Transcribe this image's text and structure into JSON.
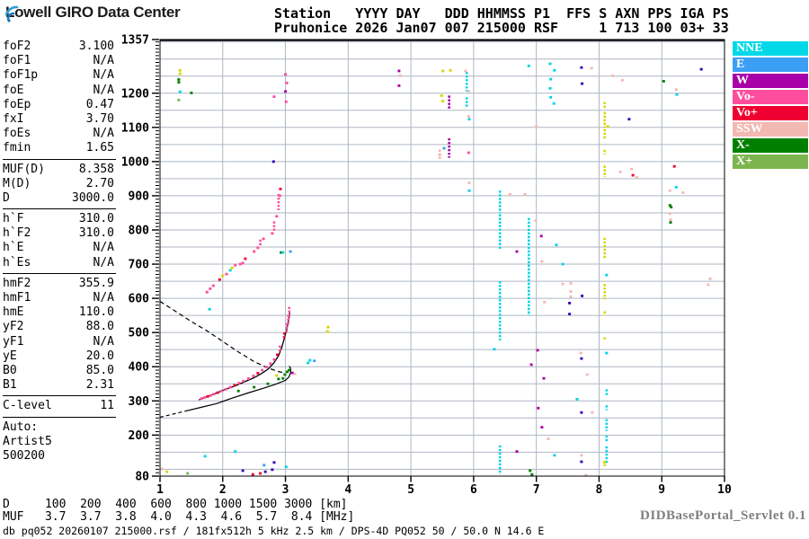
{
  "header": {
    "logo_text": "Lowell GIRO Data Center",
    "station_line1": "Station   YYYY DAY   DDD HHMMSS P1  FFS S AXN PPS IGA PS",
    "station_line2": "Pruhonice 2026 Jan07 007 215000 RSF     1 713 100 03+ 33"
  },
  "left_panel": {
    "groups": [
      {
        "rows": [
          [
            "foF2",
            "3.100"
          ],
          [
            "foF1",
            "N/A"
          ],
          [
            "foF1p",
            "N/A"
          ],
          [
            "foE",
            "N/A"
          ],
          [
            "foEp",
            "0.47"
          ],
          [
            "fxI",
            "3.70"
          ],
          [
            "foEs",
            "N/A"
          ],
          [
            "fmin",
            "1.65"
          ]
        ]
      },
      {
        "rows": [
          [
            "MUF(D)",
            "8.358"
          ],
          [
            "M(D)",
            "2.70"
          ],
          [
            "D",
            "3000.0"
          ]
        ]
      },
      {
        "rows": [
          [
            "h`F",
            "310.0"
          ],
          [
            "h`F2",
            "310.0"
          ],
          [
            "h`E",
            "N/A"
          ],
          [
            "h`Es",
            "N/A"
          ]
        ]
      },
      {
        "rows": [
          [
            "hmF2",
            "355.9"
          ],
          [
            "hmF1",
            "N/A"
          ],
          [
            "hmE",
            "110.0"
          ],
          [
            "yF2",
            "88.0"
          ],
          [
            "yF1",
            "N/A"
          ],
          [
            "yE",
            "20.0"
          ],
          [
            "B0",
            "85.0"
          ],
          [
            "B1",
            "2.31"
          ]
        ]
      },
      {
        "rows": [
          [
            "C-level",
            "11"
          ]
        ]
      },
      {
        "rows": [
          [
            "Auto:",
            ""
          ],
          [
            "Artist5",
            ""
          ],
          [
            "500200",
            ""
          ]
        ]
      }
    ]
  },
  "legend": {
    "items": [
      {
        "label": "NNE",
        "color": "#00D8E8"
      },
      {
        "label": "E",
        "color": "#3B9FF3"
      },
      {
        "label": "W",
        "color": "#A800A8"
      },
      {
        "label": "Vo-",
        "color": "#FF4D9E"
      },
      {
        "label": "Vo+",
        "color": "#F00030"
      },
      {
        "label": "SSW",
        "color": "#F2B8B2"
      },
      {
        "label": "X-",
        "color": "#007F00"
      },
      {
        "label": "X+",
        "color": "#7CB54E"
      }
    ]
  },
  "footer": {
    "d_line": "D     100  200  400  600  800 1000 1500 3000 [km]",
    "muf_line": "MUF   3.7  3.7  3.8  4.0  4.3  4.6  5.7  8.4 [MHz]",
    "status_line": "db pq052 20260107 215000.rsf / 181fx512h 5 kHz 2.5 km / DPS-4D PQ052 50 / 50.0 N 14.6 E",
    "servlet": "DIDBasePortal_Servlet 0.1"
  },
  "chart_data": {
    "type": "scatter",
    "x_ticks": [
      1,
      2,
      3,
      4,
      5,
      6,
      7,
      8,
      9,
      10
    ],
    "y_tick_labels": [
      1357,
      1200,
      1100,
      1000,
      900,
      800,
      700,
      600,
      500,
      400,
      300,
      200,
      80
    ],
    "x_range": [
      1,
      10
    ],
    "y_range": [
      80,
      1357
    ],
    "grid_y_step": 50,
    "grid_on": true,
    "colors": {
      "c": "#00D3E6",
      "b": "#3B9FF3",
      "n": "#3300BB",
      "w": "#A800A8",
      "p": "#FF4D9E",
      "r": "#F00030",
      "s": "#F2B8B2",
      "g": "#007F00",
      "l": "#7CB54E",
      "y": "#D6D600"
    },
    "curves": {
      "profile_trace": [
        [
          1.62,
          303
        ],
        [
          1.75,
          312
        ],
        [
          1.9,
          323
        ],
        [
          2.05,
          334
        ],
        [
          2.2,
          344
        ],
        [
          2.35,
          356
        ],
        [
          2.5,
          368
        ],
        [
          2.62,
          380
        ],
        [
          2.73,
          394
        ],
        [
          2.82,
          412
        ],
        [
          2.89,
          432
        ],
        [
          2.94,
          456
        ],
        [
          2.98,
          482
        ],
        [
          3.02,
          510
        ],
        [
          3.05,
          535
        ],
        [
          3.07,
          558
        ]
      ],
      "transmission_dashed": [
        [
          1.0,
          591
        ],
        [
          1.25,
          562
        ],
        [
          1.5,
          532
        ],
        [
          1.75,
          505
        ],
        [
          2.0,
          474
        ],
        [
          2.25,
          443
        ],
        [
          2.5,
          415
        ],
        [
          2.7,
          398
        ],
        [
          2.88,
          386
        ],
        [
          3.0,
          381
        ]
      ],
      "lower_dashed": [
        [
          1.0,
          252
        ],
        [
          1.2,
          261
        ],
        [
          1.4,
          270
        ]
      ],
      "lower_solid": [
        [
          1.4,
          270
        ],
        [
          1.65,
          281
        ],
        [
          1.9,
          292
        ],
        [
          2.15,
          308
        ],
        [
          2.4,
          323
        ],
        [
          2.65,
          337
        ],
        [
          2.85,
          349
        ],
        [
          3.0,
          360
        ],
        [
          3.06,
          371
        ],
        [
          3.085,
          385
        ],
        [
          3.08,
          396
        ],
        [
          3.06,
          402
        ]
      ]
    },
    "segments": [
      [
        2.6,
        755,
        772,
        "p"
      ],
      [
        2.82,
        795,
        825,
        "p"
      ],
      [
        2.89,
        858,
        905,
        "p"
      ],
      [
        5.89,
        1205,
        1262,
        "c"
      ],
      [
        5.89,
        1156,
        1188,
        "c"
      ],
      [
        5.61,
        1153,
        1193,
        "w"
      ],
      [
        5.61,
        1011,
        1068,
        "w"
      ],
      [
        5.46,
        1005,
        1035,
        "s"
      ],
      [
        6.42,
        849,
        915,
        "c"
      ],
      [
        6.42,
        743,
        846,
        "c"
      ],
      [
        6.42,
        548,
        650,
        "c"
      ],
      [
        6.42,
        477,
        545,
        "c"
      ],
      [
        6.42,
        85,
        170,
        "c"
      ],
      [
        6.88,
        549,
        835,
        "c"
      ],
      [
        8.09,
        1153,
        1174,
        "y"
      ],
      [
        8.09,
        1100,
        1145,
        "y"
      ],
      [
        8.09,
        1066,
        1095,
        "y"
      ],
      [
        8.09,
        1021,
        1034,
        "y"
      ],
      [
        8.09,
        955,
        988,
        "y"
      ],
      [
        8.09,
        716,
        777,
        "y"
      ],
      [
        8.09,
        597,
        642,
        "y"
      ],
      [
        8.09,
        549,
        562,
        "y"
      ],
      [
        8.09,
        480,
        486,
        "y"
      ],
      [
        8.12,
        316,
        334,
        "c"
      ],
      [
        8.12,
        273,
        287,
        "c"
      ],
      [
        8.12,
        212,
        247,
        "c"
      ],
      [
        8.12,
        181,
        199,
        "c"
      ],
      [
        8.12,
        114,
        167,
        "c"
      ],
      [
        8.09,
        109,
        125,
        "y"
      ],
      [
        3.02,
        500,
        528,
        "p"
      ],
      [
        3.045,
        520,
        552,
        "p"
      ],
      [
        3.06,
        542,
        575,
        "p"
      ],
      [
        2.98,
        478,
        500,
        "r"
      ],
      [
        2.91,
        440,
        462,
        "p"
      ]
    ],
    "points": [
      [
        1.32,
        1267,
        "y"
      ],
      [
        1.32,
        1257,
        "y"
      ],
      [
        1.3,
        1240,
        "g"
      ],
      [
        1.3,
        1232,
        "g"
      ],
      [
        1.32,
        1204,
        "c"
      ],
      [
        1.5,
        1201,
        "g"
      ],
      [
        1.3,
        1180,
        "l"
      ],
      [
        3.0,
        1255,
        "p"
      ],
      [
        3.02,
        1230,
        "p"
      ],
      [
        3.0,
        1205,
        "w"
      ],
      [
        3.01,
        1175,
        "p"
      ],
      [
        2.82,
        1190,
        "p"
      ],
      [
        2.81,
        1000,
        "n"
      ],
      [
        1.79,
        568,
        "c"
      ],
      [
        1.75,
        618,
        "p"
      ],
      [
        1.8,
        628,
        "p"
      ],
      [
        1.85,
        637,
        "p"
      ],
      [
        1.95,
        655,
        "r"
      ],
      [
        2.0,
        666,
        "y"
      ],
      [
        2.06,
        671,
        "p"
      ],
      [
        2.12,
        682,
        "c"
      ],
      [
        2.15,
        689,
        "y"
      ],
      [
        2.2,
        697,
        "p"
      ],
      [
        2.28,
        700,
        "p"
      ],
      [
        2.32,
        703,
        "p"
      ],
      [
        2.36,
        716,
        "r"
      ],
      [
        2.5,
        737,
        "p"
      ],
      [
        2.56,
        748,
        "p"
      ],
      [
        2.65,
        774,
        "p"
      ],
      [
        2.79,
        790,
        "p"
      ],
      [
        2.86,
        840,
        "p"
      ],
      [
        2.91,
        900,
        "p"
      ],
      [
        2.92,
        920,
        "r"
      ],
      [
        2.93,
        734,
        "g"
      ],
      [
        2.96,
        734,
        "c"
      ],
      [
        3.08,
        737,
        "b"
      ],
      [
        1.66,
        307,
        "p"
      ],
      [
        1.71,
        310,
        "p"
      ],
      [
        1.76,
        313,
        "r"
      ],
      [
        1.81,
        316,
        "p"
      ],
      [
        1.86,
        320,
        "p"
      ],
      [
        1.92,
        324,
        "r"
      ],
      [
        1.98,
        329,
        "p"
      ],
      [
        2.05,
        334,
        "p"
      ],
      [
        2.12,
        340,
        "p"
      ],
      [
        2.19,
        346,
        "r"
      ],
      [
        2.26,
        352,
        "p"
      ],
      [
        2.33,
        358,
        "p"
      ],
      [
        2.41,
        365,
        "p"
      ],
      [
        2.49,
        373,
        "p"
      ],
      [
        2.56,
        381,
        "r"
      ],
      [
        2.63,
        390,
        "p"
      ],
      [
        2.7,
        399,
        "p"
      ],
      [
        2.76,
        409,
        "p"
      ],
      [
        2.82,
        421,
        "p"
      ],
      [
        2.87,
        435,
        "r"
      ],
      [
        2.25,
        329,
        "g"
      ],
      [
        2.5,
        340,
        "g"
      ],
      [
        2.72,
        350,
        "g"
      ],
      [
        2.86,
        374,
        "y"
      ],
      [
        2.89,
        364,
        "g"
      ],
      [
        2.96,
        366,
        "g"
      ],
      [
        2.99,
        377,
        "g"
      ],
      [
        3.03,
        385,
        "g"
      ],
      [
        3.06,
        390,
        "g"
      ],
      [
        3.11,
        382,
        "w"
      ],
      [
        3.15,
        379,
        "s"
      ],
      [
        3.36,
        411,
        "c"
      ],
      [
        3.39,
        419,
        "c"
      ],
      [
        3.46,
        417,
        "b"
      ],
      [
        3.68,
        516,
        "y"
      ],
      [
        3.67,
        503,
        "y"
      ],
      [
        1.03,
        101,
        "s"
      ],
      [
        1.11,
        93,
        "y"
      ],
      [
        1.44,
        88,
        "l"
      ],
      [
        1.72,
        138,
        "c"
      ],
      [
        2.2,
        152,
        "c"
      ],
      [
        2.32,
        96,
        "n"
      ],
      [
        2.48,
        85,
        "r"
      ],
      [
        2.6,
        88,
        "r"
      ],
      [
        2.66,
        112,
        "b"
      ],
      [
        2.68,
        93,
        "n"
      ],
      [
        2.79,
        99,
        "n"
      ],
      [
        2.82,
        120,
        "n"
      ],
      [
        3.01,
        107,
        "c"
      ],
      [
        4.81,
        1265,
        "w"
      ],
      [
        4.83,
        1251,
        "s"
      ],
      [
        4.81,
        1222,
        "w"
      ],
      [
        5.51,
        1265,
        "y"
      ],
      [
        5.63,
        1267,
        "y"
      ],
      [
        5.87,
        1265,
        "s"
      ],
      [
        5.92,
        1206,
        "s"
      ],
      [
        5.49,
        1193,
        "y"
      ],
      [
        5.51,
        1177,
        "y"
      ],
      [
        5.92,
        1132,
        "s"
      ],
      [
        5.93,
        1124,
        "c"
      ],
      [
        5.53,
        1039,
        "b"
      ],
      [
        5.92,
        1026,
        "p"
      ],
      [
        5.93,
        938,
        "s"
      ],
      [
        5.93,
        915,
        "c"
      ],
      [
        6.88,
        1280,
        "c"
      ],
      [
        7.22,
        1286,
        "c"
      ],
      [
        7.29,
        1267,
        "c"
      ],
      [
        7.23,
        1241,
        "c"
      ],
      [
        7.22,
        1214,
        "c"
      ],
      [
        7.23,
        1188,
        "c"
      ],
      [
        7.28,
        1170,
        "c"
      ],
      [
        7.72,
        1275,
        "n"
      ],
      [
        7.88,
        1273,
        "s"
      ],
      [
        7.73,
        1228,
        "n"
      ],
      [
        8.22,
        1251,
        "s"
      ],
      [
        8.37,
        1238,
        "s"
      ],
      [
        7.0,
        1103,
        "s"
      ],
      [
        8.48,
        1124,
        "n"
      ],
      [
        8.14,
        1103,
        "y"
      ],
      [
        9.03,
        1235,
        "g"
      ],
      [
        9.23,
        1211,
        "s"
      ],
      [
        9.24,
        1196,
        "c"
      ],
      [
        9.63,
        1270,
        "n"
      ],
      [
        8.34,
        970,
        "s"
      ],
      [
        8.54,
        960,
        "r"
      ],
      [
        9.2,
        986,
        "r"
      ],
      [
        6.82,
        904,
        "s"
      ],
      [
        6.58,
        904,
        "s"
      ],
      [
        6.99,
        827,
        "s"
      ],
      [
        7.08,
        782,
        "w"
      ],
      [
        6.69,
        737,
        "w"
      ],
      [
        7.09,
        708,
        "s"
      ],
      [
        7.42,
        642,
        "s"
      ],
      [
        7.13,
        589,
        "s"
      ],
      [
        7.32,
        756,
        "c"
      ],
      [
        7.42,
        700,
        "c"
      ],
      [
        7.55,
        644,
        "s"
      ],
      [
        7.55,
        620,
        "s"
      ],
      [
        7.55,
        605,
        "s"
      ],
      [
        7.73,
        607,
        "n"
      ],
      [
        7.53,
        586,
        "n"
      ],
      [
        7.53,
        554,
        "n"
      ],
      [
        8.52,
        978,
        "s"
      ],
      [
        8.6,
        954,
        "s"
      ],
      [
        9.13,
        915,
        "s"
      ],
      [
        9.23,
        925,
        "c"
      ],
      [
        9.34,
        909,
        "s"
      ],
      [
        9.13,
        872,
        "g"
      ],
      [
        9.15,
        867,
        "g"
      ],
      [
        9.13,
        848,
        "s"
      ],
      [
        9.14,
        830,
        "s"
      ],
      [
        9.14,
        822,
        "g"
      ],
      [
        9.77,
        657,
        "s"
      ],
      [
        9.74,
        640,
        "s"
      ],
      [
        8.12,
        668,
        "c"
      ],
      [
        6.33,
        451,
        "c"
      ],
      [
        7.02,
        448,
        "w"
      ],
      [
        6.92,
        406,
        "w"
      ],
      [
        7.12,
        366,
        "w"
      ],
      [
        7.03,
        279,
        "w"
      ],
      [
        7.09,
        223,
        "w"
      ],
      [
        7.71,
        440,
        "s"
      ],
      [
        7.81,
        377,
        "s"
      ],
      [
        7.89,
        266,
        "s"
      ],
      [
        7.72,
        424,
        "n"
      ],
      [
        7.72,
        266,
        "n"
      ],
      [
        7.72,
        122,
        "n"
      ],
      [
        7.72,
        141,
        "s"
      ],
      [
        7.79,
        83,
        "s"
      ],
      [
        6.69,
        152,
        "w"
      ],
      [
        7.29,
        141,
        "c"
      ],
      [
        7.19,
        189,
        "s"
      ],
      [
        6.9,
        96,
        "g"
      ],
      [
        6.93,
        85,
        "g"
      ],
      [
        7.65,
        305,
        "c"
      ],
      [
        8.09,
        120,
        "y"
      ],
      [
        8.12,
        440,
        "c"
      ],
      [
        5.46,
        1020,
        "s"
      ]
    ]
  }
}
